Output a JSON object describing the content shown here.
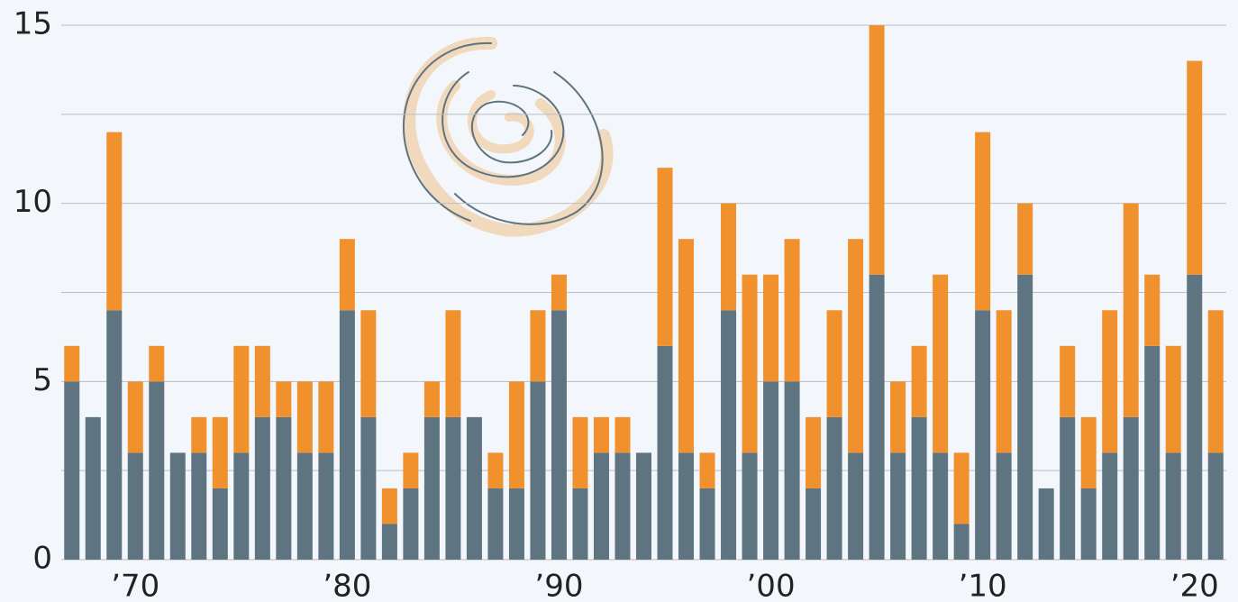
{
  "chart_data": {
    "type": "stacked_bar",
    "categories": [
      null,
      null,
      null,
      "’70",
      null,
      null,
      null,
      null,
      null,
      null,
      null,
      null,
      null,
      "’80",
      null,
      null,
      null,
      null,
      null,
      null,
      null,
      null,
      null,
      "’90",
      null,
      null,
      null,
      null,
      null,
      null,
      null,
      null,
      null,
      "’00",
      null,
      null,
      null,
      null,
      null,
      null,
      null,
      null,
      null,
      "’10",
      null,
      null,
      null,
      null,
      null,
      null,
      null,
      null,
      null,
      "’20",
      null
    ],
    "series": [
      {
        "color": "#5f7481",
        "values": [
          5,
          4,
          7,
          3,
          5,
          3,
          3,
          2,
          3,
          4,
          4,
          3,
          3,
          7,
          4,
          1,
          2,
          4,
          4,
          4,
          2,
          2,
          5,
          7,
          2,
          3,
          3,
          3,
          6,
          3,
          2,
          7,
          3,
          5,
          5,
          2,
          4,
          3,
          8,
          3,
          4,
          3,
          1,
          7,
          3,
          8,
          2,
          4,
          2,
          3,
          4,
          6,
          3,
          8,
          3
        ]
      },
      {
        "color": "#f0912e",
        "values": [
          1,
          0,
          5,
          2,
          1,
          0,
          1,
          2,
          3,
          2,
          1,
          2,
          2,
          2,
          3,
          1,
          1,
          1,
          3,
          0,
          1,
          3,
          2,
          1,
          2,
          1,
          1,
          0,
          5,
          6,
          1,
          3,
          5,
          3,
          4,
          2,
          3,
          6,
          7,
          2,
          2,
          5,
          2,
          5,
          4,
          2,
          0,
          2,
          2,
          4,
          6,
          2,
          3,
          6,
          4
        ]
      }
    ],
    "ylim": [
      0,
      15
    ],
    "yticks": [
      0,
      5,
      10,
      15
    ],
    "grid_lines": [
      0,
      2.5,
      5,
      7.5,
      10,
      12.5,
      15
    ],
    "grid": true
  }
}
